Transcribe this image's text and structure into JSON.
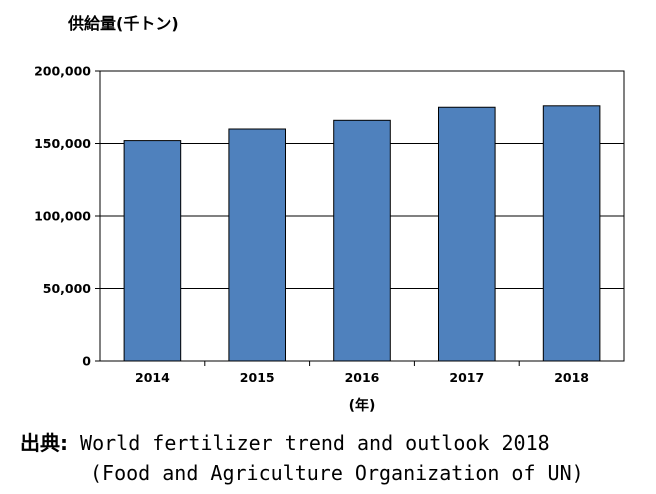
{
  "chart_data": {
    "type": "bar",
    "ylabel": "供給量(千トン)",
    "xlabel": "(年)",
    "categories": [
      "2014",
      "2015",
      "2016",
      "2017",
      "2018"
    ],
    "values": [
      152000,
      160000,
      166000,
      175000,
      176000
    ],
    "ylim": [
      0,
      200000
    ],
    "yticks": [
      0,
      50000,
      100000,
      150000,
      200000
    ],
    "ytick_labels": [
      "0",
      "50,000",
      "100,000",
      "150,000",
      "200,000"
    ],
    "grid": true,
    "bar_color": "#4f81bd"
  },
  "source": {
    "label": "出典:",
    "line1": "World fertilizer trend and outlook 2018",
    "line2": "(Food and Agriculture Organization of UN)"
  }
}
